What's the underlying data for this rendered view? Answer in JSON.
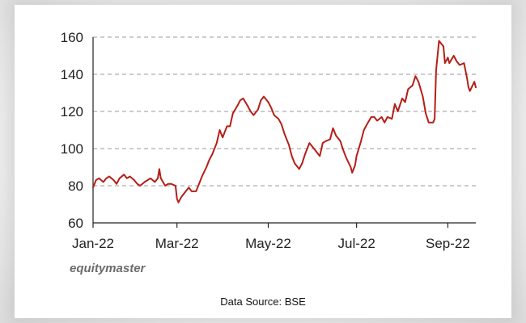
{
  "brand": "equitymaster",
  "source_note": "Data Source: BSE",
  "chart_data": {
    "type": "line",
    "title": "",
    "xlabel": "",
    "ylabel": "",
    "ylim": [
      60,
      160
    ],
    "yticks": [
      60,
      80,
      100,
      120,
      140,
      160
    ],
    "xticks": [
      {
        "label": "Jan-22",
        "date": "2022-01-03"
      },
      {
        "label": "Mar-22",
        "date": "2022-03-01"
      },
      {
        "label": "May-22",
        "date": "2022-05-02"
      },
      {
        "label": "Jul-22",
        "date": "2022-07-01"
      },
      {
        "label": "Sep-22",
        "date": "2022-09-01"
      }
    ],
    "xlim": [
      "2022-01-03",
      "2022-09-20"
    ],
    "grid": "horizontal dashed",
    "line_color": "#b51f16",
    "series": [
      {
        "values": [
          [
            "2022-01-03",
            79
          ],
          [
            "2022-01-05",
            83
          ],
          [
            "2022-01-07",
            84
          ],
          [
            "2022-01-10",
            82
          ],
          [
            "2022-01-12",
            84
          ],
          [
            "2022-01-14",
            85
          ],
          [
            "2022-01-17",
            83
          ],
          [
            "2022-01-19",
            81
          ],
          [
            "2022-01-21",
            84
          ],
          [
            "2022-01-24",
            86
          ],
          [
            "2022-01-26",
            84
          ],
          [
            "2022-01-28",
            85
          ],
          [
            "2022-01-31",
            83
          ],
          [
            "2022-02-02",
            81
          ],
          [
            "2022-02-04",
            80
          ],
          [
            "2022-02-07",
            82
          ],
          [
            "2022-02-09",
            83
          ],
          [
            "2022-02-11",
            84
          ],
          [
            "2022-02-14",
            82
          ],
          [
            "2022-02-16",
            84
          ],
          [
            "2022-02-17",
            89
          ],
          [
            "2022-02-18",
            84
          ],
          [
            "2022-02-21",
            80
          ],
          [
            "2022-02-23",
            81
          ],
          [
            "2022-02-25",
            81
          ],
          [
            "2022-02-28",
            80
          ],
          [
            "2022-03-01",
            73
          ],
          [
            "2022-03-02",
            71
          ],
          [
            "2022-03-04",
            74
          ],
          [
            "2022-03-07",
            77
          ],
          [
            "2022-03-09",
            79
          ],
          [
            "2022-03-11",
            77
          ],
          [
            "2022-03-14",
            77
          ],
          [
            "2022-03-16",
            81
          ],
          [
            "2022-03-18",
            85
          ],
          [
            "2022-03-21",
            90
          ],
          [
            "2022-03-23",
            94
          ],
          [
            "2022-03-25",
            97
          ],
          [
            "2022-03-28",
            103
          ],
          [
            "2022-03-30",
            110
          ],
          [
            "2022-04-01",
            106
          ],
          [
            "2022-04-04",
            112
          ],
          [
            "2022-04-06",
            112
          ],
          [
            "2022-04-08",
            119
          ],
          [
            "2022-04-11",
            123
          ],
          [
            "2022-04-13",
            126
          ],
          [
            "2022-04-15",
            127
          ],
          [
            "2022-04-18",
            123
          ],
          [
            "2022-04-20",
            120
          ],
          [
            "2022-04-22",
            118
          ],
          [
            "2022-04-25",
            121
          ],
          [
            "2022-04-27",
            126
          ],
          [
            "2022-04-29",
            128
          ],
          [
            "2022-05-02",
            125
          ],
          [
            "2022-05-04",
            122
          ],
          [
            "2022-05-06",
            118
          ],
          [
            "2022-05-09",
            116
          ],
          [
            "2022-05-11",
            113
          ],
          [
            "2022-05-13",
            108
          ],
          [
            "2022-05-16",
            102
          ],
          [
            "2022-05-18",
            96
          ],
          [
            "2022-05-20",
            92
          ],
          [
            "2022-05-23",
            89
          ],
          [
            "2022-05-25",
            92
          ],
          [
            "2022-05-27",
            97
          ],
          [
            "2022-05-30",
            103
          ],
          [
            "2022-06-01",
            101
          ],
          [
            "2022-06-03",
            99
          ],
          [
            "2022-06-06",
            96
          ],
          [
            "2022-06-08",
            103
          ],
          [
            "2022-06-10",
            104
          ],
          [
            "2022-06-13",
            105
          ],
          [
            "2022-06-15",
            111
          ],
          [
            "2022-06-17",
            107
          ],
          [
            "2022-06-20",
            104
          ],
          [
            "2022-06-22",
            99
          ],
          [
            "2022-06-24",
            95
          ],
          [
            "2022-06-27",
            90
          ],
          [
            "2022-06-28",
            87
          ],
          [
            "2022-06-30",
            91
          ],
          [
            "2022-07-01",
            96
          ],
          [
            "2022-07-04",
            104
          ],
          [
            "2022-07-06",
            110
          ],
          [
            "2022-07-08",
            113
          ],
          [
            "2022-07-11",
            117
          ],
          [
            "2022-07-13",
            117
          ],
          [
            "2022-07-15",
            115
          ],
          [
            "2022-07-18",
            117
          ],
          [
            "2022-07-20",
            114
          ],
          [
            "2022-07-22",
            117
          ],
          [
            "2022-07-25",
            116
          ],
          [
            "2022-07-27",
            124
          ],
          [
            "2022-07-29",
            120
          ],
          [
            "2022-08-01",
            127
          ],
          [
            "2022-08-03",
            125
          ],
          [
            "2022-08-05",
            132
          ],
          [
            "2022-08-08",
            134
          ],
          [
            "2022-08-10",
            139
          ],
          [
            "2022-08-12",
            136
          ],
          [
            "2022-08-15",
            128
          ],
          [
            "2022-08-17",
            119
          ],
          [
            "2022-08-19",
            114
          ],
          [
            "2022-08-22",
            114
          ],
          [
            "2022-08-23",
            116
          ],
          [
            "2022-08-24",
            142
          ],
          [
            "2022-08-26",
            158
          ],
          [
            "2022-08-29",
            155
          ],
          [
            "2022-08-30",
            146
          ],
          [
            "2022-09-01",
            149
          ],
          [
            "2022-09-02",
            146
          ],
          [
            "2022-09-05",
            150
          ],
          [
            "2022-09-07",
            147
          ],
          [
            "2022-09-09",
            145
          ],
          [
            "2022-09-12",
            146
          ],
          [
            "2022-09-14",
            138
          ],
          [
            "2022-09-15",
            133
          ],
          [
            "2022-09-16",
            131
          ],
          [
            "2022-09-19",
            136
          ],
          [
            "2022-09-20",
            133
          ]
        ]
      }
    ]
  }
}
